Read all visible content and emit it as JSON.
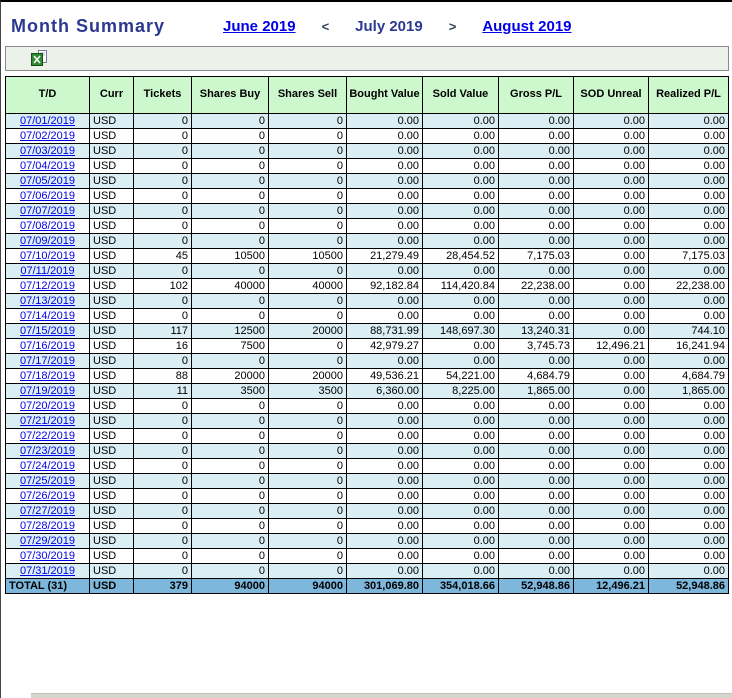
{
  "page": {
    "title": "Month Summary"
  },
  "nav": {
    "prev_label": "June 2019",
    "prev_arrow": "<",
    "current_label": "July 2019",
    "next_arrow": ">",
    "next_label": "August 2019"
  },
  "toolbar": {
    "excel_icon": "excel-export-icon"
  },
  "colors": {
    "header_green": "#CDF7CD",
    "row_alt_blue": "#DAEEF3",
    "total_blue": "#7EB7DC",
    "link_blue": "#0000E6",
    "title_navy": "#2B3990"
  },
  "table": {
    "headers": [
      "T/D",
      "Curr",
      "Tickets",
      "Shares Buy",
      "Shares Sell",
      "Bought Value",
      "Sold Value",
      "Gross P/L",
      "SOD Unreal",
      "Realized P/L"
    ],
    "rows": [
      {
        "date": "07/01/2019",
        "curr": "USD",
        "values": [
          "0",
          "0",
          "0",
          "0.00",
          "0.00",
          "0.00",
          "0.00",
          "0.00"
        ]
      },
      {
        "date": "07/02/2019",
        "curr": "USD",
        "values": [
          "0",
          "0",
          "0",
          "0.00",
          "0.00",
          "0.00",
          "0.00",
          "0.00"
        ]
      },
      {
        "date": "07/03/2019",
        "curr": "USD",
        "values": [
          "0",
          "0",
          "0",
          "0.00",
          "0.00",
          "0.00",
          "0.00",
          "0.00"
        ]
      },
      {
        "date": "07/04/2019",
        "curr": "USD",
        "values": [
          "0",
          "0",
          "0",
          "0.00",
          "0.00",
          "0.00",
          "0.00",
          "0.00"
        ]
      },
      {
        "date": "07/05/2019",
        "curr": "USD",
        "values": [
          "0",
          "0",
          "0",
          "0.00",
          "0.00",
          "0.00",
          "0.00",
          "0.00"
        ]
      },
      {
        "date": "07/06/2019",
        "curr": "USD",
        "values": [
          "0",
          "0",
          "0",
          "0.00",
          "0.00",
          "0.00",
          "0.00",
          "0.00"
        ]
      },
      {
        "date": "07/07/2019",
        "curr": "USD",
        "values": [
          "0",
          "0",
          "0",
          "0.00",
          "0.00",
          "0.00",
          "0.00",
          "0.00"
        ]
      },
      {
        "date": "07/08/2019",
        "curr": "USD",
        "values": [
          "0",
          "0",
          "0",
          "0.00",
          "0.00",
          "0.00",
          "0.00",
          "0.00"
        ]
      },
      {
        "date": "07/09/2019",
        "curr": "USD",
        "values": [
          "0",
          "0",
          "0",
          "0.00",
          "0.00",
          "0.00",
          "0.00",
          "0.00"
        ]
      },
      {
        "date": "07/10/2019",
        "curr": "USD",
        "values": [
          "45",
          "10500",
          "10500",
          "21,279.49",
          "28,454.52",
          "7,175.03",
          "0.00",
          "7,175.03"
        ]
      },
      {
        "date": "07/11/2019",
        "curr": "USD",
        "values": [
          "0",
          "0",
          "0",
          "0.00",
          "0.00",
          "0.00",
          "0.00",
          "0.00"
        ]
      },
      {
        "date": "07/12/2019",
        "curr": "USD",
        "values": [
          "102",
          "40000",
          "40000",
          "92,182.84",
          "114,420.84",
          "22,238.00",
          "0.00",
          "22,238.00"
        ]
      },
      {
        "date": "07/13/2019",
        "curr": "USD",
        "values": [
          "0",
          "0",
          "0",
          "0.00",
          "0.00",
          "0.00",
          "0.00",
          "0.00"
        ]
      },
      {
        "date": "07/14/2019",
        "curr": "USD",
        "values": [
          "0",
          "0",
          "0",
          "0.00",
          "0.00",
          "0.00",
          "0.00",
          "0.00"
        ]
      },
      {
        "date": "07/15/2019",
        "curr": "USD",
        "values": [
          "117",
          "12500",
          "20000",
          "88,731.99",
          "148,697.30",
          "13,240.31",
          "0.00",
          "744.10"
        ]
      },
      {
        "date": "07/16/2019",
        "curr": "USD",
        "values": [
          "16",
          "7500",
          "0",
          "42,979.27",
          "0.00",
          "3,745.73",
          "12,496.21",
          "16,241.94"
        ]
      },
      {
        "date": "07/17/2019",
        "curr": "USD",
        "values": [
          "0",
          "0",
          "0",
          "0.00",
          "0.00",
          "0.00",
          "0.00",
          "0.00"
        ]
      },
      {
        "date": "07/18/2019",
        "curr": "USD",
        "values": [
          "88",
          "20000",
          "20000",
          "49,536.21",
          "54,221.00",
          "4,684.79",
          "0.00",
          "4,684.79"
        ]
      },
      {
        "date": "07/19/2019",
        "curr": "USD",
        "values": [
          "11",
          "3500",
          "3500",
          "6,360.00",
          "8,225.00",
          "1,865.00",
          "0.00",
          "1,865.00"
        ]
      },
      {
        "date": "07/20/2019",
        "curr": "USD",
        "values": [
          "0",
          "0",
          "0",
          "0.00",
          "0.00",
          "0.00",
          "0.00",
          "0.00"
        ]
      },
      {
        "date": "07/21/2019",
        "curr": "USD",
        "values": [
          "0",
          "0",
          "0",
          "0.00",
          "0.00",
          "0.00",
          "0.00",
          "0.00"
        ]
      },
      {
        "date": "07/22/2019",
        "curr": "USD",
        "values": [
          "0",
          "0",
          "0",
          "0.00",
          "0.00",
          "0.00",
          "0.00",
          "0.00"
        ]
      },
      {
        "date": "07/23/2019",
        "curr": "USD",
        "values": [
          "0",
          "0",
          "0",
          "0.00",
          "0.00",
          "0.00",
          "0.00",
          "0.00"
        ]
      },
      {
        "date": "07/24/2019",
        "curr": "USD",
        "values": [
          "0",
          "0",
          "0",
          "0.00",
          "0.00",
          "0.00",
          "0.00",
          "0.00"
        ]
      },
      {
        "date": "07/25/2019",
        "curr": "USD",
        "values": [
          "0",
          "0",
          "0",
          "0.00",
          "0.00",
          "0.00",
          "0.00",
          "0.00"
        ]
      },
      {
        "date": "07/26/2019",
        "curr": "USD",
        "values": [
          "0",
          "0",
          "0",
          "0.00",
          "0.00",
          "0.00",
          "0.00",
          "0.00"
        ]
      },
      {
        "date": "07/27/2019",
        "curr": "USD",
        "values": [
          "0",
          "0",
          "0",
          "0.00",
          "0.00",
          "0.00",
          "0.00",
          "0.00"
        ]
      },
      {
        "date": "07/28/2019",
        "curr": "USD",
        "values": [
          "0",
          "0",
          "0",
          "0.00",
          "0.00",
          "0.00",
          "0.00",
          "0.00"
        ]
      },
      {
        "date": "07/29/2019",
        "curr": "USD",
        "values": [
          "0",
          "0",
          "0",
          "0.00",
          "0.00",
          "0.00",
          "0.00",
          "0.00"
        ]
      },
      {
        "date": "07/30/2019",
        "curr": "USD",
        "values": [
          "0",
          "0",
          "0",
          "0.00",
          "0.00",
          "0.00",
          "0.00",
          "0.00"
        ]
      },
      {
        "date": "07/31/2019",
        "curr": "USD",
        "values": [
          "0",
          "0",
          "0",
          "0.00",
          "0.00",
          "0.00",
          "0.00",
          "0.00"
        ]
      }
    ],
    "total": {
      "label": "TOTAL (31)",
      "curr": "USD",
      "values": [
        "379",
        "94000",
        "94000",
        "301,069.80",
        "354,018.66",
        "52,948.86",
        "12,496.21",
        "52,948.86"
      ]
    }
  }
}
